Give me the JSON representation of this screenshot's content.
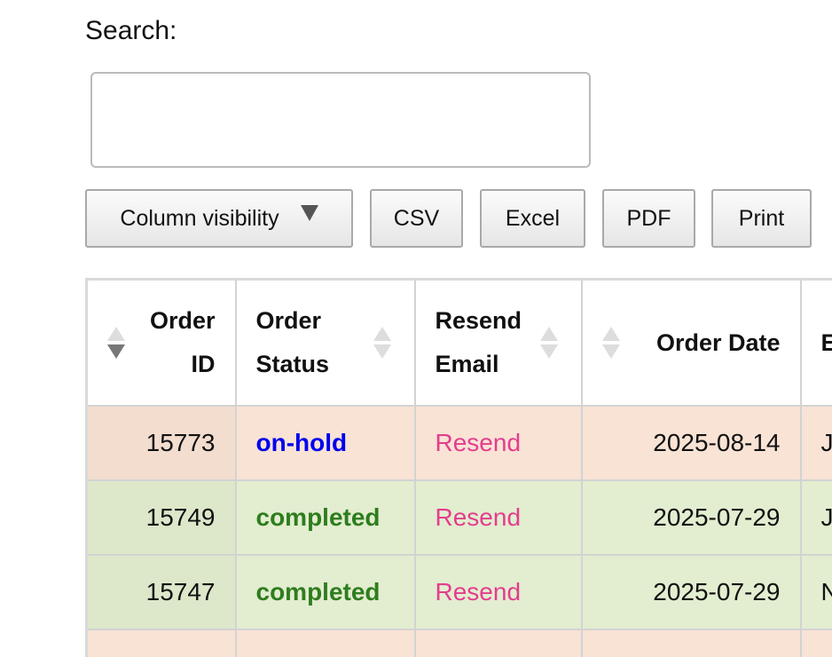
{
  "search": {
    "label": "Search:"
  },
  "buttons": [
    "Column visibility",
    "CSV",
    "Excel",
    "PDF",
    "Print"
  ],
  "table": {
    "headers": [
      "Order ID",
      "Order Status",
      "Resend Email",
      "Order Date",
      "E"
    ],
    "rows": [
      [
        "15773",
        "on-hold",
        "Resend",
        "2025-08-14",
        "J"
      ],
      [
        "15749",
        "completed",
        "Resend",
        "2025-07-29",
        "J"
      ],
      [
        "15747",
        "completed",
        "Resend",
        "2025-07-29",
        "N"
      ]
    ]
  }
}
